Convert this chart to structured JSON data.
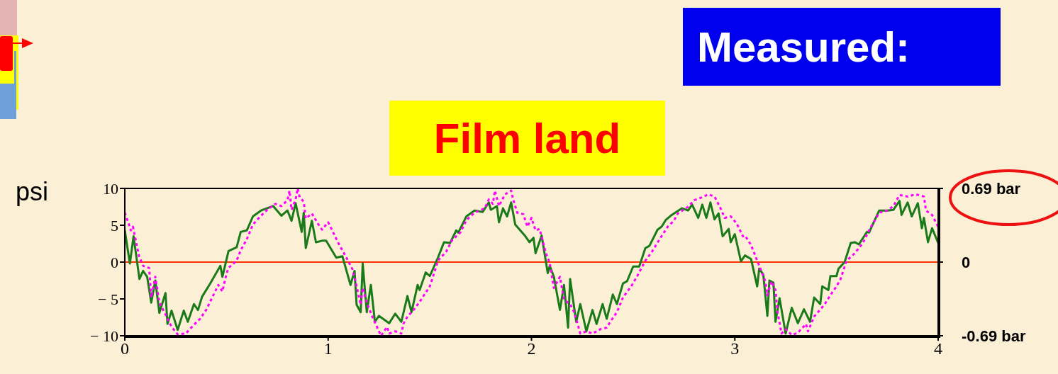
{
  "chart_data": {
    "type": "line",
    "title": "Measured:",
    "subtitle": "Film land",
    "ylabel": "psi",
    "xlim": [
      0,
      4
    ],
    "xticks": [
      0,
      1,
      2,
      3,
      4
    ],
    "ylim": [
      -10,
      10
    ],
    "yticks": [
      {
        "value": -10,
        "label": "− 10"
      },
      {
        "value": -5,
        "label": "− 5"
      },
      0,
      5,
      10
    ],
    "y2lim": [
      -0.69,
      0.69
    ],
    "y2ticks": [
      {
        "value": -0.69,
        "label": "-0.69 bar"
      },
      0,
      {
        "value": 0.69,
        "label": "0.69 bar"
      }
    ],
    "grid": false,
    "legend": false,
    "marker": "none",
    "ref_lines": [
      {
        "axis": "y",
        "value": 0,
        "color": "#ff3300"
      }
    ],
    "series": [
      {
        "color": "#1a7a1a",
        "line_style": "solid",
        "x": [
          0,
          0.025,
          0.043,
          0.072,
          0.09,
          0.11,
          0.13,
          0.15,
          0.17,
          0.2,
          0.21,
          0.23,
          0.26,
          0.29,
          0.31,
          0.34,
          0.36,
          0.38,
          0.42,
          0.47,
          0.48,
          0.51,
          0.55,
          0.57,
          0.6,
          0.63,
          0.67,
          0.73,
          0.77,
          0.8,
          0.82,
          0.84,
          0.87,
          0.88,
          0.89,
          0.92,
          0.94,
          0.97,
          0.99,
          1.04,
          1.07,
          1.11,
          1.13,
          1.14,
          1.16,
          1.17,
          1.19,
          1.21,
          1.23,
          1.25,
          1.3,
          1.33,
          1.36,
          1.39,
          1.41,
          1.44,
          1.45,
          1.48,
          1.5,
          1.54,
          1.57,
          1.6,
          1.63,
          1.64,
          1.68,
          1.72,
          1.76,
          1.79,
          1.8,
          1.83,
          1.84,
          1.86,
          1.88,
          1.9,
          1.92,
          1.97,
          1.99,
          2.01,
          2.02,
          2.05,
          2.08,
          2.09,
          2.11,
          2.14,
          2.16,
          2.18,
          2.19,
          2.22,
          2.24,
          2.27,
          2.3,
          2.32,
          2.35,
          2.37,
          2.4,
          2.42,
          2.45,
          2.47,
          2.5,
          2.53,
          2.56,
          2.58,
          2.62,
          2.64,
          2.66,
          2.69,
          2.74,
          2.77,
          2.79,
          2.82,
          2.84,
          2.86,
          2.88,
          2.9,
          2.92,
          2.94,
          2.97,
          2.98,
          3.0,
          3.03,
          3.05,
          3.08,
          3.11,
          3.12,
          3.14,
          3.16,
          3.17,
          3.19,
          3.2,
          3.22,
          3.25,
          3.28,
          3.31,
          3.34,
          3.37,
          3.39,
          3.42,
          3.43,
          3.46,
          3.47,
          3.5,
          3.51,
          3.54,
          3.57,
          3.59,
          3.61,
          3.65,
          3.66,
          3.71,
          3.75,
          3.78,
          3.81,
          3.82,
          3.85,
          3.87,
          3.9,
          3.92,
          3.93,
          3.95,
          3.97,
          4.0
        ],
        "values": [
          4.3,
          -0.2,
          3.5,
          -2.3,
          -1.2,
          -2.0,
          -5.5,
          -2.5,
          -6.9,
          -4.2,
          -8.4,
          -6.6,
          -9.2,
          -6.6,
          -8.1,
          -5.7,
          -6.5,
          -4.7,
          -2.9,
          -0.5,
          -2.0,
          1.5,
          2.0,
          4.1,
          4.3,
          6.2,
          7.0,
          7.6,
          6.3,
          7.0,
          5.6,
          8.0,
          4.1,
          6.7,
          1.9,
          5.6,
          2.7,
          2.9,
          2.9,
          0.6,
          0.8,
          -3.1,
          -1.2,
          -5.8,
          -6.8,
          -0.2,
          -6.8,
          -3.1,
          -8.1,
          -7.3,
          -8.3,
          -7.0,
          -8.1,
          -4.6,
          -6.8,
          -3.1,
          -3.8,
          -1.4,
          -1.9,
          0.6,
          2.7,
          2.6,
          4.3,
          4.0,
          6.2,
          7.0,
          6.8,
          8.1,
          7.1,
          7.6,
          5.4,
          7.3,
          6.2,
          8.1,
          5.1,
          3.5,
          2.7,
          3.3,
          1.2,
          3.6,
          -1.5,
          -0.5,
          -2.0,
          -6.5,
          -3.1,
          -8.9,
          -2.3,
          -8.1,
          -5.7,
          -9.4,
          -6.5,
          -8.4,
          -5.7,
          -7.7,
          -4.4,
          -5.7,
          -2.9,
          -2.6,
          -0.6,
          -0.6,
          1.9,
          2.2,
          4.4,
          4.8,
          5.7,
          6.4,
          7.3,
          7.0,
          7.8,
          6.0,
          7.8,
          6.0,
          8.1,
          5.8,
          6.6,
          3.5,
          4.5,
          2.7,
          3.8,
          0.1,
          0.9,
          0.4,
          -3.3,
          -0.9,
          -1.7,
          -7.3,
          -2.5,
          -2.8,
          -8.1,
          -4.9,
          -9.7,
          -6.2,
          -8.3,
          -6.4,
          -8.1,
          -4.8,
          -5.7,
          -3.3,
          -3.8,
          -1.9,
          -1.9,
          -0.9,
          0.0,
          2.6,
          2.7,
          2.4,
          4.1,
          4.0,
          7.0,
          7.0,
          7.1,
          8.3,
          6.4,
          8.1,
          6.2,
          8.0,
          4.6,
          6.0,
          2.7,
          4.6,
          2.6
        ]
      },
      {
        "color": "#ff00ff",
        "line_style": "dotted",
        "x": [
          0,
          0.03,
          0.04,
          0.07,
          0.09,
          0.12,
          0.13,
          0.15,
          0.17,
          0.2,
          0.23,
          0.26,
          0.3,
          0.34,
          0.37,
          0.4,
          0.43,
          0.46,
          0.48,
          0.5,
          0.51,
          0.55,
          0.57,
          0.6,
          0.63,
          0.67,
          0.7,
          0.74,
          0.77,
          0.8,
          0.81,
          0.82,
          0.84,
          0.85,
          0.86,
          0.88,
          0.89,
          0.92,
          0.95,
          0.97,
          1.0,
          1.02,
          1.05,
          1.09,
          1.12,
          1.14,
          1.16,
          1.17,
          1.19,
          1.22,
          1.25,
          1.26,
          1.29,
          1.3,
          1.33,
          1.36,
          1.37,
          1.39,
          1.42,
          1.45,
          1.5,
          1.52,
          1.54,
          1.58,
          1.61,
          1.65,
          1.68,
          1.72,
          1.77,
          1.79,
          1.81,
          1.82,
          1.84,
          1.87,
          1.9,
          1.91,
          1.93,
          1.96,
          1.98,
          2.0,
          2.02,
          2.04,
          2.07,
          2.09,
          2.11,
          2.14,
          2.16,
          2.19,
          2.21,
          2.24,
          2.27,
          2.3,
          2.34,
          2.37,
          2.39,
          2.42,
          2.45,
          2.49,
          2.52,
          2.56,
          2.59,
          2.63,
          2.67,
          2.7,
          2.72,
          2.77,
          2.8,
          2.84,
          2.87,
          2.9,
          2.93,
          2.95,
          2.98,
          3.01,
          3.04,
          3.05,
          3.08,
          3.11,
          3.13,
          3.15,
          3.16,
          3.18,
          3.2,
          3.21,
          3.23,
          3.25,
          3.28,
          3.31,
          3.35,
          3.36,
          3.39,
          3.44,
          3.47,
          3.5,
          3.52,
          3.55,
          3.59,
          3.63,
          3.66,
          3.71,
          3.75,
          3.78,
          3.81,
          3.85,
          3.89,
          3.93,
          3.94,
          3.97,
          4.0
        ],
        "values": [
          6.7,
          4.3,
          4.8,
          0.8,
          -0.5,
          -0.8,
          -4.8,
          -2.0,
          -5.5,
          -7.1,
          -8.8,
          -9.8,
          -9.7,
          -8.5,
          -7.7,
          -6.5,
          -4.8,
          -3.1,
          -4.0,
          -1.6,
          -0.8,
          0.2,
          1.6,
          3.1,
          5.1,
          6.3,
          7.1,
          7.9,
          7.6,
          8.4,
          9.7,
          7.1,
          8.5,
          10.0,
          8.8,
          8.2,
          5.9,
          6.6,
          5.2,
          4.4,
          5.4,
          4.3,
          2.6,
          0.6,
          -1.0,
          -3.3,
          -5.8,
          -3.5,
          -5.5,
          -7.6,
          -9.4,
          -10.0,
          -8.8,
          -9.7,
          -9.4,
          -9.7,
          -8.4,
          -7.4,
          -6.5,
          -5.4,
          -3.3,
          -1.6,
          0.2,
          1.4,
          3.0,
          4.0,
          5.7,
          6.7,
          7.3,
          8.5,
          7.9,
          9.7,
          7.6,
          9.2,
          9.7,
          8.5,
          6.7,
          6.5,
          4.8,
          6.0,
          4.3,
          4.5,
          1.3,
          -0.2,
          -3.5,
          -2.0,
          -5.1,
          -5.7,
          -6.8,
          -9.7,
          -9.4,
          -9.7,
          -9.1,
          -8.9,
          -8.0,
          -6.8,
          -4.8,
          -3.3,
          -1.9,
          0.2,
          1.3,
          3.1,
          4.8,
          5.6,
          6.6,
          7.5,
          8.4,
          8.8,
          9.2,
          8.9,
          7.3,
          6.0,
          6.2,
          5.2,
          3.5,
          3.6,
          2.3,
          0.2,
          -1.2,
          -2.6,
          -4.5,
          -2.6,
          -3.8,
          -6.8,
          -9.7,
          -9.1,
          -9.9,
          -9.6,
          -8.4,
          -9.4,
          -7.4,
          -5.8,
          -4.5,
          -3.3,
          -2.3,
          0.2,
          1.2,
          2.6,
          4.3,
          6.7,
          7.0,
          7.6,
          9.1,
          8.9,
          9.2,
          8.9,
          7.0,
          6.4,
          4.8
        ]
      }
    ]
  }
}
